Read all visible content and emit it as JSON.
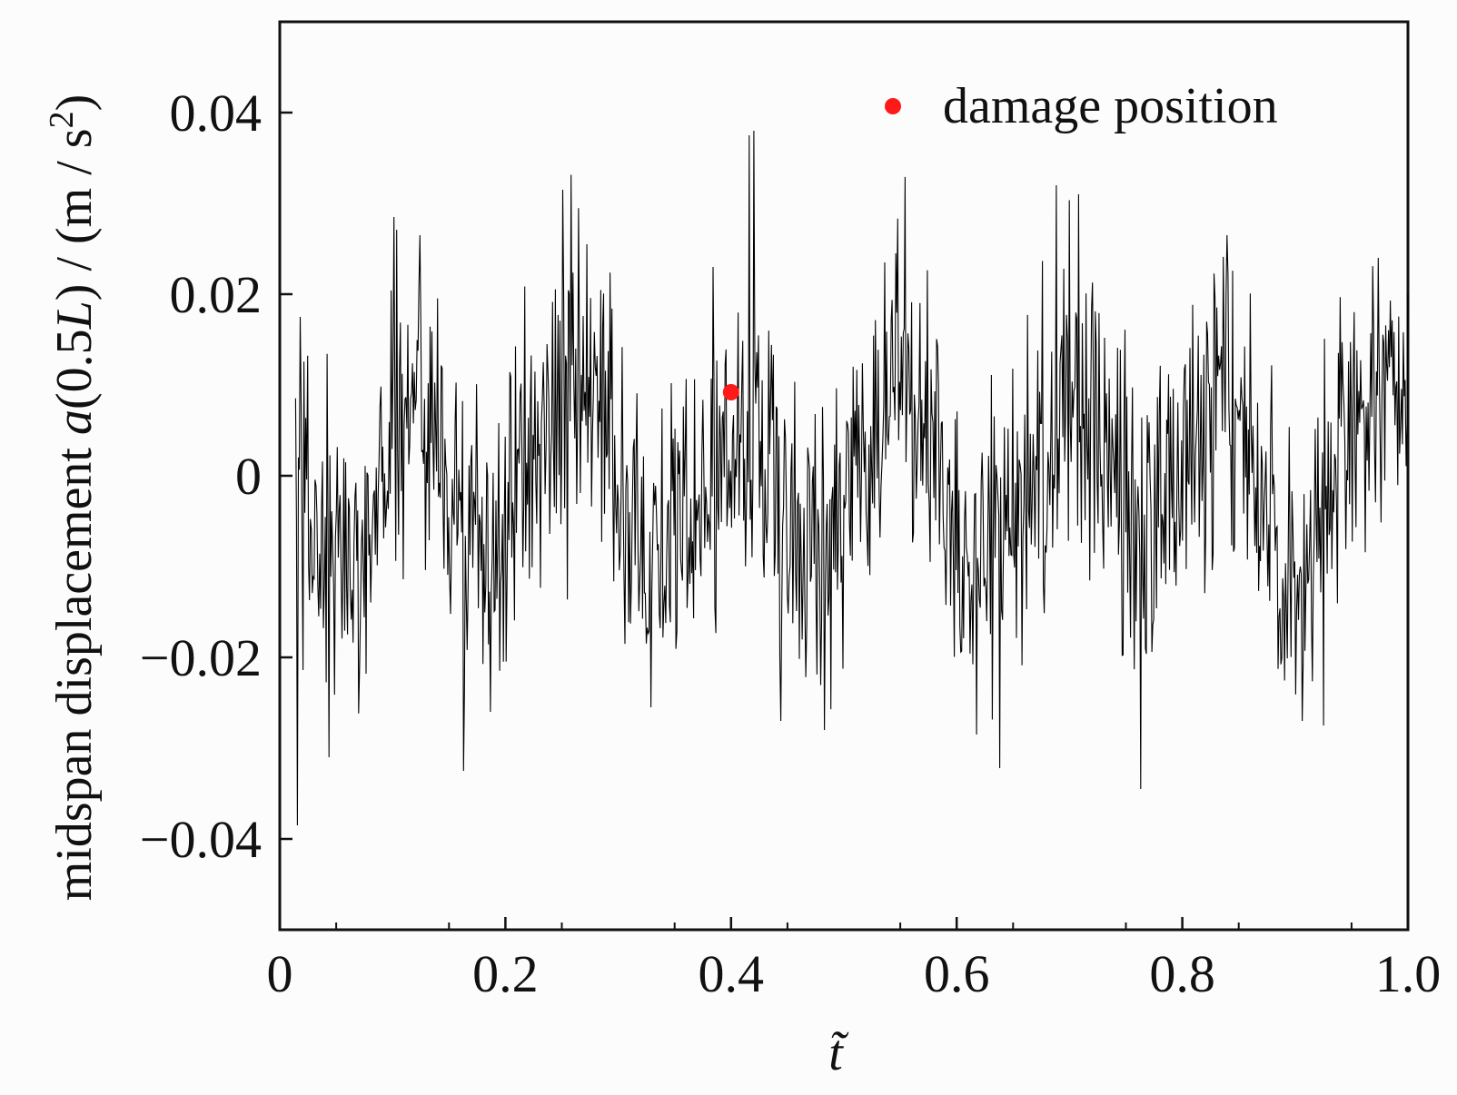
{
  "chart_data": {
    "type": "line",
    "xlabel": "t̃",
    "ylabel": {
      "prefix": "midspan displacement ",
      "func": "a",
      "arg_open": "(0.5",
      "arg_var": "L",
      "arg_close": ")",
      "units_open": " / (m / s",
      "units_exp": "2",
      "units_close": ")"
    },
    "xlim": [
      0,
      1.0
    ],
    "ylim": [
      -0.05,
      0.05
    ],
    "x_ticks": [
      {
        "value": 0,
        "label": "0"
      },
      {
        "value": 0.2,
        "label": "0.2"
      },
      {
        "value": 0.4,
        "label": "0.4"
      },
      {
        "value": 0.6,
        "label": "0.6"
      },
      {
        "value": 0.8,
        "label": "0.8"
      },
      {
        "value": 1.0,
        "label": "1.0"
      }
    ],
    "y_ticks": [
      {
        "value": -0.04,
        "label": "−0.04"
      },
      {
        "value": -0.02,
        "label": "−0.02"
      },
      {
        "value": 0,
        "label": "0"
      },
      {
        "value": 0.02,
        "label": "0.02"
      },
      {
        "value": 0.04,
        "label": "0.04"
      }
    ],
    "x_minor_step": 0.1,
    "y_minor_step": 0.01,
    "grid": false,
    "legend": {
      "placement": "top-right",
      "entries": [
        {
          "label": "damage position",
          "color": "#ff1a1a",
          "marker": "dot"
        }
      ]
    },
    "series": [
      {
        "color": "#000000",
        "sample_count": 1200,
        "trend": {
          "x": [
            0.014,
            0.04,
            0.06,
            0.08,
            0.1,
            0.12,
            0.14,
            0.16,
            0.18,
            0.2,
            0.22,
            0.25,
            0.27,
            0.29,
            0.32,
            0.35,
            0.38,
            0.4,
            0.42,
            0.44,
            0.46,
            0.48,
            0.5,
            0.53,
            0.55,
            0.57,
            0.6,
            0.62,
            0.64,
            0.67,
            0.7,
            0.72,
            0.74,
            0.76,
            0.79,
            0.81,
            0.83,
            0.85,
            0.87,
            0.89,
            0.91,
            0.93,
            0.95,
            0.97,
            1.0
          ],
          "y": [
            0.0,
            -0.01,
            -0.01,
            -0.005,
            0.005,
            0.01,
            0.004,
            -0.005,
            -0.01,
            -0.005,
            0.002,
            0.009,
            0.008,
            0.003,
            -0.005,
            -0.008,
            -0.002,
            0.003,
            0.005,
            0.0,
            -0.01,
            -0.008,
            -0.002,
            0.008,
            0.01,
            0.005,
            -0.004,
            -0.008,
            -0.006,
            0.002,
            0.01,
            0.006,
            -0.002,
            -0.008,
            -0.003,
            0.005,
            0.01,
            0.007,
            -0.002,
            -0.01,
            -0.01,
            -0.004,
            0.004,
            0.009,
            0.01
          ]
        },
        "peaks": [
          {
            "x": 0.0155,
            "y": -0.0385
          },
          {
            "x": 0.0185,
            "y": 0.0175
          },
          {
            "x": 0.044,
            "y": -0.031
          },
          {
            "x": 0.101,
            "y": 0.0285
          },
          {
            "x": 0.124,
            "y": 0.0265
          },
          {
            "x": 0.163,
            "y": -0.0325
          },
          {
            "x": 0.187,
            "y": -0.026
          },
          {
            "x": 0.251,
            "y": 0.0315
          },
          {
            "x": 0.329,
            "y": -0.0255
          },
          {
            "x": 0.384,
            "y": 0.023
          },
          {
            "x": 0.416,
            "y": 0.0375
          },
          {
            "x": 0.42,
            "y": 0.038
          },
          {
            "x": 0.444,
            "y": -0.027
          },
          {
            "x": 0.483,
            "y": -0.028
          },
          {
            "x": 0.546,
            "y": 0.0245
          },
          {
            "x": 0.618,
            "y": -0.0285
          },
          {
            "x": 0.638,
            "y": -0.0322
          },
          {
            "x": 0.688,
            "y": 0.032
          },
          {
            "x": 0.708,
            "y": 0.031
          },
          {
            "x": 0.763,
            "y": -0.0345
          },
          {
            "x": 0.84,
            "y": 0.0265
          },
          {
            "x": 0.906,
            "y": -0.027
          },
          {
            "x": 0.925,
            "y": -0.0275
          },
          {
            "x": 0.974,
            "y": 0.024
          },
          {
            "x": 1.0,
            "y": 0.02
          }
        ]
      }
    ],
    "points": [
      {
        "name": "damage position",
        "x": 0.4,
        "y": 0.0092,
        "color": "#ff1a1a"
      }
    ]
  }
}
